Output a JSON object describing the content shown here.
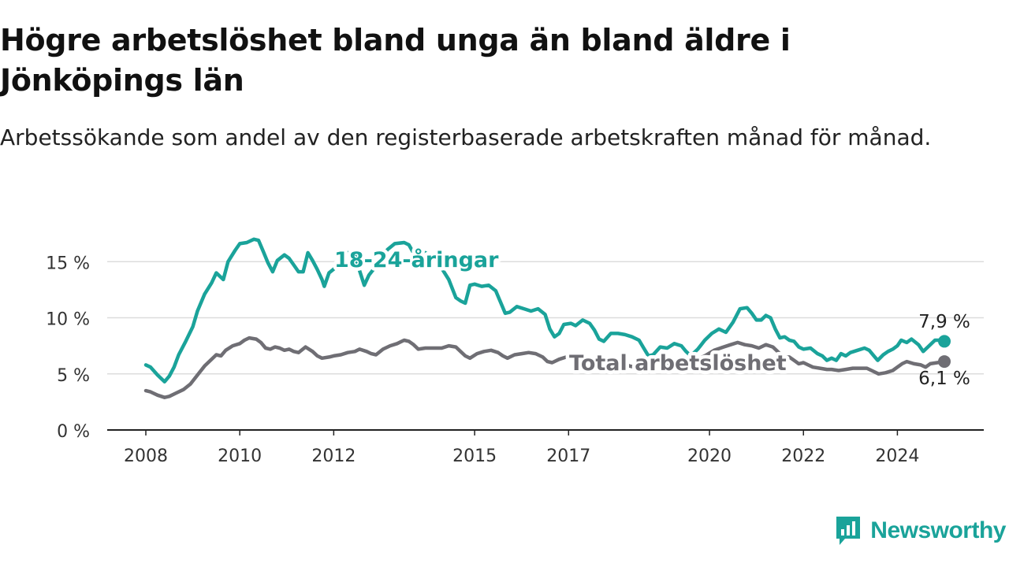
{
  "header": {
    "title": "Högre arbetslöshet bland unga än bland äldre i Jönköpings län",
    "subtitle": "Arbetssökande som andel av den registerbaserade arbetskraften månad för månad."
  },
  "brand": {
    "name": "Newsworthy",
    "icon": "newsworthy-logo-icon",
    "color": "#1aa39a"
  },
  "chart_data": {
    "type": "line",
    "title": "Högre arbetslöshet bland unga än bland äldre i Jönköpings län",
    "subtitle": "Arbetssökande som andel av den registerbaserade arbetskraften månad för månad.",
    "xlabel": "",
    "ylabel": "",
    "xlim": [
      2008.0,
      2025.0
    ],
    "ylim": [
      0,
      17.5
    ],
    "grid": true,
    "x_ticks": [
      {
        "value": 2008.0,
        "label": "2008"
      },
      {
        "value": 2010.0,
        "label": "2010"
      },
      {
        "value": 2012.0,
        "label": "2012"
      },
      {
        "value": 2015.0,
        "label": "2015"
      },
      {
        "value": 2017.0,
        "label": "2017"
      },
      {
        "value": 2020.0,
        "label": "2020"
      },
      {
        "value": 2022.0,
        "label": "2022"
      },
      {
        "value": 2024.0,
        "label": "2024"
      }
    ],
    "y_ticks": [
      {
        "value": 0,
        "label": "0 %"
      },
      {
        "value": 5,
        "label": "5 %"
      },
      {
        "value": 10,
        "label": "10 %"
      },
      {
        "value": 15,
        "label": "15 %"
      }
    ],
    "series": [
      {
        "name": "18-24-åringar",
        "color": "#1aa39a",
        "end_label": "7,9 %",
        "points": [
          [
            2008.0,
            5.8
          ],
          [
            2008.1,
            5.6
          ],
          [
            2008.25,
            4.9
          ],
          [
            2008.4,
            4.3
          ],
          [
            2008.5,
            4.8
          ],
          [
            2008.6,
            5.6
          ],
          [
            2008.7,
            6.7
          ],
          [
            2008.85,
            7.9
          ],
          [
            2009.0,
            9.2
          ],
          [
            2009.1,
            10.6
          ],
          [
            2009.25,
            12.1
          ],
          [
            2009.4,
            13.1
          ],
          [
            2009.5,
            14.0
          ],
          [
            2009.65,
            13.4
          ],
          [
            2009.75,
            15.0
          ],
          [
            2009.9,
            16.0
          ],
          [
            2010.0,
            16.6
          ],
          [
            2010.15,
            16.7
          ],
          [
            2010.3,
            17.0
          ],
          [
            2010.4,
            16.9
          ],
          [
            2010.5,
            15.9
          ],
          [
            2010.6,
            14.9
          ],
          [
            2010.7,
            14.1
          ],
          [
            2010.8,
            15.1
          ],
          [
            2010.95,
            15.6
          ],
          [
            2011.05,
            15.3
          ],
          [
            2011.15,
            14.7
          ],
          [
            2011.25,
            14.1
          ],
          [
            2011.35,
            14.1
          ],
          [
            2011.45,
            15.8
          ],
          [
            2011.55,
            15.1
          ],
          [
            2011.65,
            14.3
          ],
          [
            2011.75,
            13.4
          ],
          [
            2011.8,
            12.8
          ],
          [
            2011.9,
            14.0
          ],
          [
            2012.05,
            14.5
          ],
          [
            2012.15,
            15.3
          ],
          [
            2012.3,
            15.8
          ],
          [
            2012.45,
            15.6
          ],
          [
            2012.55,
            14.2
          ],
          [
            2012.65,
            12.9
          ],
          [
            2012.75,
            13.8
          ],
          [
            2012.9,
            14.6
          ],
          [
            2013.0,
            15.4
          ],
          [
            2013.15,
            16.1
          ],
          [
            2013.3,
            16.6
          ],
          [
            2013.5,
            16.7
          ],
          [
            2013.6,
            16.5
          ],
          [
            2013.75,
            15.4
          ],
          [
            2013.85,
            14.4
          ],
          [
            2013.95,
            15.8
          ],
          [
            2014.1,
            15.3
          ],
          [
            2014.3,
            14.4
          ],
          [
            2014.45,
            13.4
          ],
          [
            2014.6,
            11.8
          ],
          [
            2014.7,
            11.5
          ],
          [
            2014.8,
            11.3
          ],
          [
            2014.9,
            12.9
          ],
          [
            2015.0,
            13.0
          ],
          [
            2015.15,
            12.8
          ],
          [
            2015.3,
            12.9
          ],
          [
            2015.45,
            12.4
          ],
          [
            2015.55,
            11.4
          ],
          [
            2015.65,
            10.4
          ],
          [
            2015.75,
            10.5
          ],
          [
            2015.9,
            11.0
          ],
          [
            2016.05,
            10.8
          ],
          [
            2016.2,
            10.6
          ],
          [
            2016.35,
            10.8
          ],
          [
            2016.5,
            10.3
          ],
          [
            2016.6,
            9.0
          ],
          [
            2016.7,
            8.3
          ],
          [
            2016.8,
            8.6
          ],
          [
            2016.9,
            9.4
          ],
          [
            2017.05,
            9.5
          ],
          [
            2017.15,
            9.3
          ],
          [
            2017.3,
            9.8
          ],
          [
            2017.45,
            9.5
          ],
          [
            2017.55,
            8.9
          ],
          [
            2017.65,
            8.1
          ],
          [
            2017.75,
            7.9
          ],
          [
            2017.9,
            8.6
          ],
          [
            2018.05,
            8.6
          ],
          [
            2018.2,
            8.5
          ],
          [
            2018.35,
            8.3
          ],
          [
            2018.5,
            8.0
          ],
          [
            2018.6,
            7.3
          ],
          [
            2018.7,
            6.6
          ],
          [
            2018.8,
            6.7
          ],
          [
            2018.95,
            7.4
          ],
          [
            2019.1,
            7.3
          ],
          [
            2019.25,
            7.7
          ],
          [
            2019.4,
            7.5
          ],
          [
            2019.5,
            7.0
          ],
          [
            2019.6,
            6.6
          ],
          [
            2019.75,
            7.2
          ],
          [
            2019.9,
            8.0
          ],
          [
            2020.05,
            8.6
          ],
          [
            2020.2,
            9.0
          ],
          [
            2020.35,
            8.7
          ],
          [
            2020.5,
            9.6
          ],
          [
            2020.65,
            10.8
          ],
          [
            2020.8,
            10.9
          ],
          [
            2020.9,
            10.4
          ],
          [
            2021.0,
            9.8
          ],
          [
            2021.1,
            9.8
          ],
          [
            2021.2,
            10.2
          ],
          [
            2021.3,
            10.0
          ],
          [
            2021.4,
            9.0
          ],
          [
            2021.5,
            8.2
          ],
          [
            2021.6,
            8.3
          ],
          [
            2021.7,
            8.0
          ],
          [
            2021.8,
            7.9
          ],
          [
            2021.9,
            7.4
          ],
          [
            2022.0,
            7.2
          ],
          [
            2022.15,
            7.3
          ],
          [
            2022.3,
            6.8
          ],
          [
            2022.4,
            6.6
          ],
          [
            2022.5,
            6.2
          ],
          [
            2022.6,
            6.4
          ],
          [
            2022.7,
            6.2
          ],
          [
            2022.8,
            6.8
          ],
          [
            2022.9,
            6.6
          ],
          [
            2023.0,
            6.9
          ],
          [
            2023.15,
            7.1
          ],
          [
            2023.3,
            7.3
          ],
          [
            2023.4,
            7.1
          ],
          [
            2023.5,
            6.6
          ],
          [
            2023.58,
            6.2
          ],
          [
            2023.7,
            6.7
          ],
          [
            2023.8,
            7.0
          ],
          [
            2023.9,
            7.2
          ],
          [
            2024.0,
            7.5
          ],
          [
            2024.08,
            8.0
          ],
          [
            2024.2,
            7.8
          ],
          [
            2024.3,
            8.1
          ],
          [
            2024.45,
            7.6
          ],
          [
            2024.55,
            7.0
          ],
          [
            2024.65,
            7.4
          ],
          [
            2024.8,
            8.0
          ],
          [
            2024.9,
            8.0
          ],
          [
            2025.0,
            7.9
          ]
        ]
      },
      {
        "name": "Total arbetslöshet",
        "color": "#6f6e74",
        "end_label": "6,1 %",
        "points": [
          [
            2008.0,
            3.5
          ],
          [
            2008.1,
            3.4
          ],
          [
            2008.25,
            3.1
          ],
          [
            2008.4,
            2.9
          ],
          [
            2008.5,
            3.0
          ],
          [
            2008.65,
            3.3
          ],
          [
            2008.8,
            3.6
          ],
          [
            2008.95,
            4.1
          ],
          [
            2009.1,
            4.9
          ],
          [
            2009.25,
            5.7
          ],
          [
            2009.4,
            6.3
          ],
          [
            2009.5,
            6.7
          ],
          [
            2009.6,
            6.6
          ],
          [
            2009.7,
            7.1
          ],
          [
            2009.85,
            7.5
          ],
          [
            2010.0,
            7.7
          ],
          [
            2010.1,
            8.0
          ],
          [
            2010.2,
            8.2
          ],
          [
            2010.35,
            8.1
          ],
          [
            2010.45,
            7.8
          ],
          [
            2010.55,
            7.3
          ],
          [
            2010.65,
            7.2
          ],
          [
            2010.75,
            7.4
          ],
          [
            2010.85,
            7.3
          ],
          [
            2010.95,
            7.1
          ],
          [
            2011.05,
            7.2
          ],
          [
            2011.15,
            7.0
          ],
          [
            2011.25,
            6.9
          ],
          [
            2011.4,
            7.4
          ],
          [
            2011.55,
            7.0
          ],
          [
            2011.65,
            6.6
          ],
          [
            2011.75,
            6.4
          ],
          [
            2011.9,
            6.5
          ],
          [
            2012.0,
            6.6
          ],
          [
            2012.15,
            6.7
          ],
          [
            2012.3,
            6.9
          ],
          [
            2012.45,
            7.0
          ],
          [
            2012.55,
            7.2
          ],
          [
            2012.7,
            7.0
          ],
          [
            2012.8,
            6.8
          ],
          [
            2012.9,
            6.7
          ],
          [
            2013.05,
            7.2
          ],
          [
            2013.2,
            7.5
          ],
          [
            2013.35,
            7.7
          ],
          [
            2013.5,
            8.0
          ],
          [
            2013.6,
            7.9
          ],
          [
            2013.7,
            7.6
          ],
          [
            2013.8,
            7.2
          ],
          [
            2013.95,
            7.3
          ],
          [
            2014.1,
            7.3
          ],
          [
            2014.3,
            7.3
          ],
          [
            2014.45,
            7.5
          ],
          [
            2014.6,
            7.4
          ],
          [
            2014.7,
            7.0
          ],
          [
            2014.8,
            6.6
          ],
          [
            2014.9,
            6.4
          ],
          [
            2015.05,
            6.8
          ],
          [
            2015.2,
            7.0
          ],
          [
            2015.35,
            7.1
          ],
          [
            2015.5,
            6.9
          ],
          [
            2015.6,
            6.6
          ],
          [
            2015.7,
            6.4
          ],
          [
            2015.85,
            6.7
          ],
          [
            2016.0,
            6.8
          ],
          [
            2016.15,
            6.9
          ],
          [
            2016.3,
            6.8
          ],
          [
            2016.45,
            6.5
          ],
          [
            2016.55,
            6.1
          ],
          [
            2016.65,
            6.0
          ],
          [
            2016.8,
            6.3
          ],
          [
            2016.95,
            6.5
          ],
          [
            2017.1,
            6.7
          ],
          [
            2017.3,
            6.7
          ],
          [
            2017.5,
            6.2
          ],
          [
            2017.7,
            5.8
          ],
          [
            2017.9,
            6.0
          ],
          [
            2018.1,
            6.0
          ],
          [
            2018.3,
            5.7
          ],
          [
            2018.5,
            5.5
          ],
          [
            2018.7,
            5.5
          ],
          [
            2018.9,
            5.6
          ],
          [
            2019.1,
            5.8
          ],
          [
            2019.3,
            5.7
          ],
          [
            2019.5,
            6.0
          ],
          [
            2019.7,
            6.2
          ],
          [
            2019.9,
            6.6
          ],
          [
            2020.1,
            7.1
          ],
          [
            2020.3,
            7.4
          ],
          [
            2020.45,
            7.6
          ],
          [
            2020.6,
            7.8
          ],
          [
            2020.75,
            7.6
          ],
          [
            2020.9,
            7.5
          ],
          [
            2021.05,
            7.3
          ],
          [
            2021.2,
            7.6
          ],
          [
            2021.35,
            7.4
          ],
          [
            2021.5,
            6.8
          ],
          [
            2021.6,
            6.5
          ],
          [
            2021.7,
            6.5
          ],
          [
            2021.8,
            6.2
          ],
          [
            2021.9,
            5.9
          ],
          [
            2022.0,
            6.0
          ],
          [
            2022.1,
            5.8
          ],
          [
            2022.2,
            5.6
          ],
          [
            2022.35,
            5.5
          ],
          [
            2022.5,
            5.4
          ],
          [
            2022.6,
            5.4
          ],
          [
            2022.75,
            5.3
          ],
          [
            2022.9,
            5.4
          ],
          [
            2023.05,
            5.5
          ],
          [
            2023.2,
            5.5
          ],
          [
            2023.35,
            5.5
          ],
          [
            2023.5,
            5.2
          ],
          [
            2023.6,
            5.0
          ],
          [
            2023.75,
            5.1
          ],
          [
            2023.9,
            5.3
          ],
          [
            2024.0,
            5.6
          ],
          [
            2024.1,
            5.9
          ],
          [
            2024.2,
            6.1
          ],
          [
            2024.35,
            5.9
          ],
          [
            2024.5,
            5.8
          ],
          [
            2024.6,
            5.6
          ],
          [
            2024.7,
            5.9
          ],
          [
            2024.85,
            6.0
          ],
          [
            2025.0,
            6.1
          ]
        ]
      }
    ]
  }
}
